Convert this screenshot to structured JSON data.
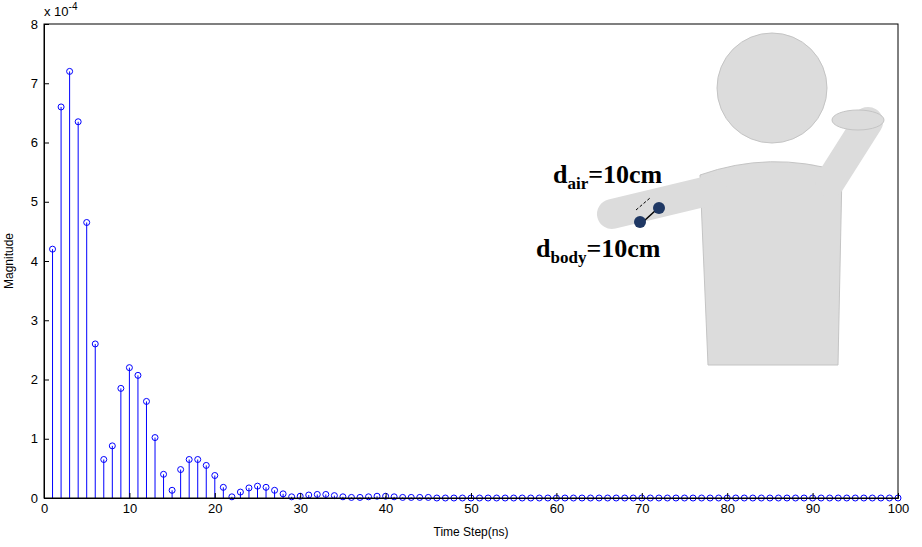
{
  "chart_data": {
    "type": "stem",
    "x_label": "Time Step(ns)",
    "y_label": "Magnitude",
    "y_multiplier": {
      "text": "x 10",
      "superscript": "-4"
    },
    "annotations": [
      {
        "text": "d",
        "subscript": "air",
        "suffix": "=10cm"
      },
      {
        "text": "d",
        "subscript": "body",
        "suffix": "=10cm"
      }
    ],
    "x": [
      1,
      2,
      3,
      4,
      5,
      6,
      7,
      8,
      9,
      10,
      11,
      12,
      13,
      14,
      15,
      16,
      17,
      18,
      19,
      20,
      21,
      22,
      23,
      24,
      25,
      26,
      27,
      28,
      29,
      30,
      31,
      32,
      33,
      34,
      35,
      36,
      37,
      38,
      39,
      40,
      41,
      42,
      43,
      44,
      45,
      46,
      47,
      48,
      49,
      50,
      51,
      52,
      53,
      54,
      55,
      56,
      57,
      58,
      59,
      60,
      61,
      62,
      63,
      64,
      65,
      66,
      67,
      68,
      69,
      70,
      71,
      72,
      73,
      74,
      75,
      76,
      77,
      78,
      79,
      80,
      81,
      82,
      83,
      84,
      85,
      86,
      87,
      88,
      89,
      90,
      91,
      92,
      93,
      94,
      95,
      96,
      97,
      98,
      99,
      100
    ],
    "values": [
      0.00042,
      0.00066,
      0.00072,
      0.000635,
      0.000465,
      0.00026,
      6.5e-05,
      8.8e-05,
      0.000185,
      0.00022,
      0.000207,
      0.000163,
      0.000102,
      4e-05,
      1.3e-05,
      4.8e-05,
      6.5e-05,
      6.5e-05,
      5.5e-05,
      3.8e-05,
      1.8e-05,
      2e-06,
      1e-05,
      1.7e-05,
      2e-05,
      1.8e-05,
      1.3e-05,
      7e-06,
      2e-06,
      3e-06,
      5e-06,
      6e-06,
      6e-06,
      4e-06,
      2e-06,
      1e-06,
      1e-06,
      2e-06,
      3e-06,
      3e-06,
      2e-06,
      1e-06,
      1e-06,
      1e-06,
      1e-06,
      0,
      0,
      0,
      0,
      0,
      0,
      0,
      0,
      0,
      0,
      0,
      0,
      0,
      0,
      0,
      0,
      0,
      0,
      0,
      0,
      0,
      0,
      0,
      0,
      0,
      0,
      0,
      0,
      0,
      0,
      0,
      0,
      0,
      0,
      0,
      0,
      0,
      0,
      0,
      0,
      0,
      0,
      0,
      0,
      0,
      0,
      0,
      0,
      0,
      0,
      0,
      0,
      0,
      0,
      0
    ],
    "color": "#0000ff",
    "marker": "circle",
    "line_style": "solid",
    "grid": false,
    "xlim": [
      0,
      100
    ],
    "xticks": [
      0,
      10,
      20,
      30,
      40,
      50,
      60,
      70,
      80,
      90,
      100
    ],
    "ylim": [
      0,
      0.0008
    ],
    "yticks": [
      0,
      {
        "value": 0.0001,
        "label": "1"
      },
      {
        "value": 0.0002,
        "label": "2"
      },
      {
        "value": 0.0003,
        "label": "3"
      },
      {
        "value": 0.0004,
        "label": "4"
      },
      {
        "value": 0.0005,
        "label": "5"
      },
      {
        "value": 0.0006,
        "label": "6"
      },
      {
        "value": 0.0007,
        "label": "7"
      },
      {
        "value": 0.0008,
        "label": "8"
      }
    ]
  }
}
